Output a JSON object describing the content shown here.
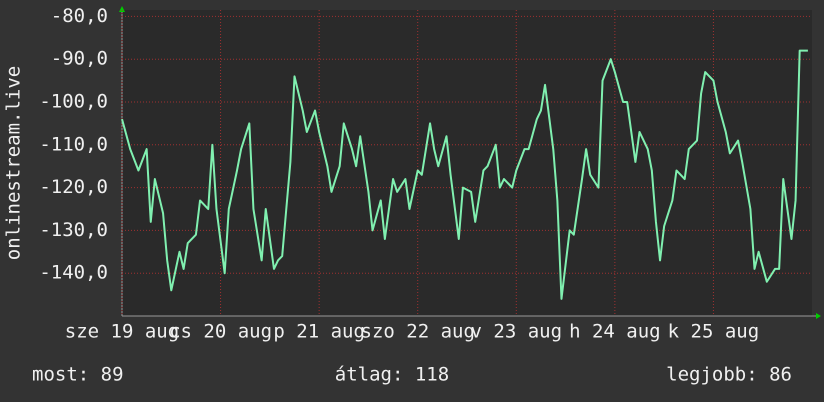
{
  "chart_data": {
    "type": "line",
    "ylabel": "onlinestream.live",
    "x": [
      0,
      2,
      4,
      6,
      7,
      8,
      10,
      11,
      12,
      14,
      15,
      16,
      18,
      19,
      21,
      22,
      23,
      25,
      26,
      28,
      29,
      31,
      32,
      34,
      35,
      37,
      38,
      39,
      41,
      42,
      44,
      45,
      47,
      48,
      50,
      51,
      53,
      54,
      56,
      57,
      58,
      60,
      61,
      63,
      64,
      66,
      67,
      69,
      70,
      72,
      73,
      75,
      76,
      77,
      79,
      80,
      82,
      83,
      85,
      86,
      88,
      89,
      91,
      92,
      93,
      95,
      96,
      98,
      99,
      101,
      102,
      103,
      105,
      106,
      107,
      109,
      110,
      112,
      113,
      114,
      116,
      117,
      119,
      120,
      122,
      123,
      125,
      126,
      128,
      129,
      130,
      131,
      132,
      134,
      135,
      137,
      138,
      140,
      141,
      142,
      144,
      145,
      147,
      148,
      150,
      151,
      153,
      154,
      155,
      157,
      159,
      160,
      161,
      163,
      164,
      165,
      167
    ],
    "series": [
      {
        "color": "#80f0b0",
        "values": [
          -104,
          -111,
          -116,
          -111,
          -128,
          -118,
          -126,
          -137,
          -144,
          -135,
          -139,
          -133,
          -131,
          -123,
          -125,
          -110,
          -125,
          -140,
          -125,
          -116,
          -111,
          -105,
          -125,
          -137,
          -125,
          -139,
          -137,
          -136,
          -114,
          -94,
          -102,
          -107,
          -102,
          -107,
          -115,
          -121,
          -115,
          -105,
          -111,
          -115,
          -108,
          -121,
          -130,
          -123,
          -132,
          -118,
          -121,
          -118,
          -125,
          -116,
          -117,
          -105,
          -111,
          -115,
          -108,
          -117,
          -132,
          -120,
          -121,
          -128,
          -116,
          -115,
          -110,
          -120,
          -118,
          -120,
          -116,
          -111,
          -111,
          -104,
          -102,
          -96,
          -111,
          -123,
          -146,
          -130,
          -131,
          -118,
          -111,
          -117,
          -120,
          -95,
          -90,
          -93,
          -100,
          -100,
          -114,
          -107,
          -111,
          -116,
          -128,
          -137,
          -129,
          -123,
          -116,
          -118,
          -111,
          -109,
          -98,
          -93,
          -95,
          -100,
          -107,
          -112,
          -109,
          -114,
          -125,
          -139,
          -135,
          -142,
          -139,
          -139,
          -118,
          -132,
          -123,
          -88,
          -88
        ]
      }
    ],
    "xlim": [
      0,
      168
    ],
    "xticks": [
      {
        "value": 0,
        "label": "sze 19 aug"
      },
      {
        "value": 24,
        "label": "cs 20 aug"
      },
      {
        "value": 48,
        "label": "p 21 aug"
      },
      {
        "value": 72,
        "label": "szo 22 aug"
      },
      {
        "value": 96,
        "label": "v 23 aug"
      },
      {
        "value": 120,
        "label": "h 24 aug"
      },
      {
        "value": 144,
        "label": "k 25 aug"
      }
    ],
    "ylim": [
      -150,
      -78.5
    ],
    "yticks": [
      {
        "value": -80,
        "label": "-80,0"
      },
      {
        "value": -90,
        "label": "-90,0"
      },
      {
        "value": -100,
        "label": "-100,0"
      },
      {
        "value": -110,
        "label": "-110,0"
      },
      {
        "value": -120,
        "label": "-120,0"
      },
      {
        "value": -130,
        "label": "-130,0"
      },
      {
        "value": -140,
        "label": "-140,0"
      }
    ],
    "grid": true,
    "stats": [
      "most: 89",
      "átlag: 118",
      "legjobb: 86"
    ]
  }
}
